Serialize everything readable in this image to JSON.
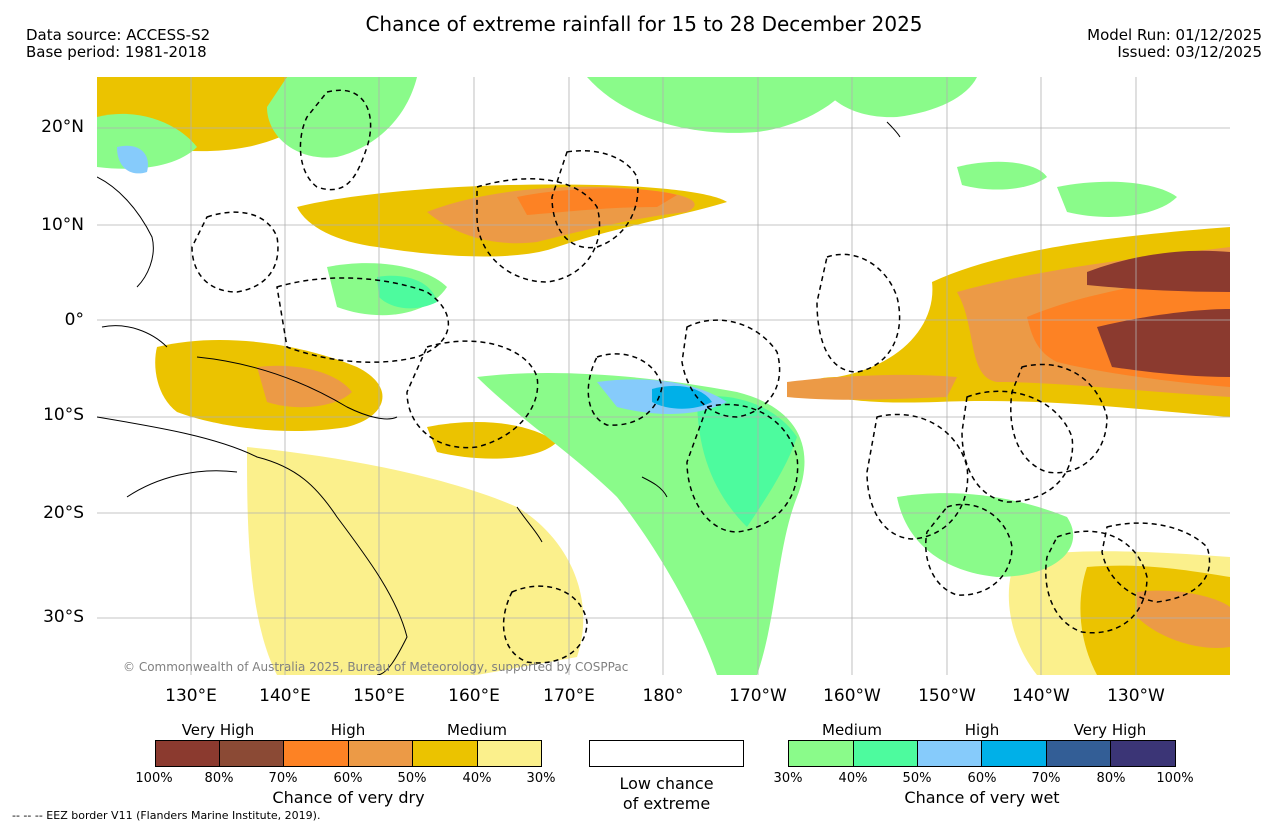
{
  "header": {
    "title": "Chance of extreme rainfall for 15 to 28 December 2025",
    "data_source": "Data source: ACCESS-S2",
    "base_period": "Base period: 1981-2018",
    "model_run": "Model Run: 01/12/2025",
    "issued": "Issued: 03/12/2025"
  },
  "map": {
    "lat_labels": [
      "20°N",
      "10°N",
      "0°",
      "10°S",
      "20°S",
      "30°S"
    ],
    "lon_labels": [
      "130°E",
      "140°E",
      "150°E",
      "160°E",
      "170°E",
      "180°",
      "170°W",
      "160°W",
      "150°W",
      "140°W",
      "130°W"
    ],
    "copyright": "© Commonwealth of Australia 2025, Bureau of Meteorology, supported by COSPPac"
  },
  "legend": {
    "dry": {
      "levels": [
        "Very High",
        "High",
        "Medium"
      ],
      "colors": [
        "#8b3a2f",
        "#8b4a35",
        "#fd8224",
        "#ec9a46",
        "#ebc300",
        "#fbf08c"
      ],
      "ticks": [
        "100%",
        "80%",
        "70%",
        "60%",
        "50%",
        "40%",
        "30%"
      ],
      "caption": "Chance of very dry"
    },
    "low": {
      "caption_line1": "Low chance",
      "caption_line2": "of extreme",
      "color": "#ffffff"
    },
    "wet": {
      "levels": [
        "Medium",
        "High",
        "Very High"
      ],
      "colors": [
        "#8afb8a",
        "#4dfb9e",
        "#86cbfb",
        "#00b0e8",
        "#335e96",
        "#3b3576"
      ],
      "ticks": [
        "30%",
        "40%",
        "50%",
        "60%",
        "70%",
        "80%",
        "100%"
      ],
      "caption": "Chance of very wet"
    }
  },
  "footnote": "--  --  -- EEZ border V11 (Flanders Marine Institute, 2019)."
}
